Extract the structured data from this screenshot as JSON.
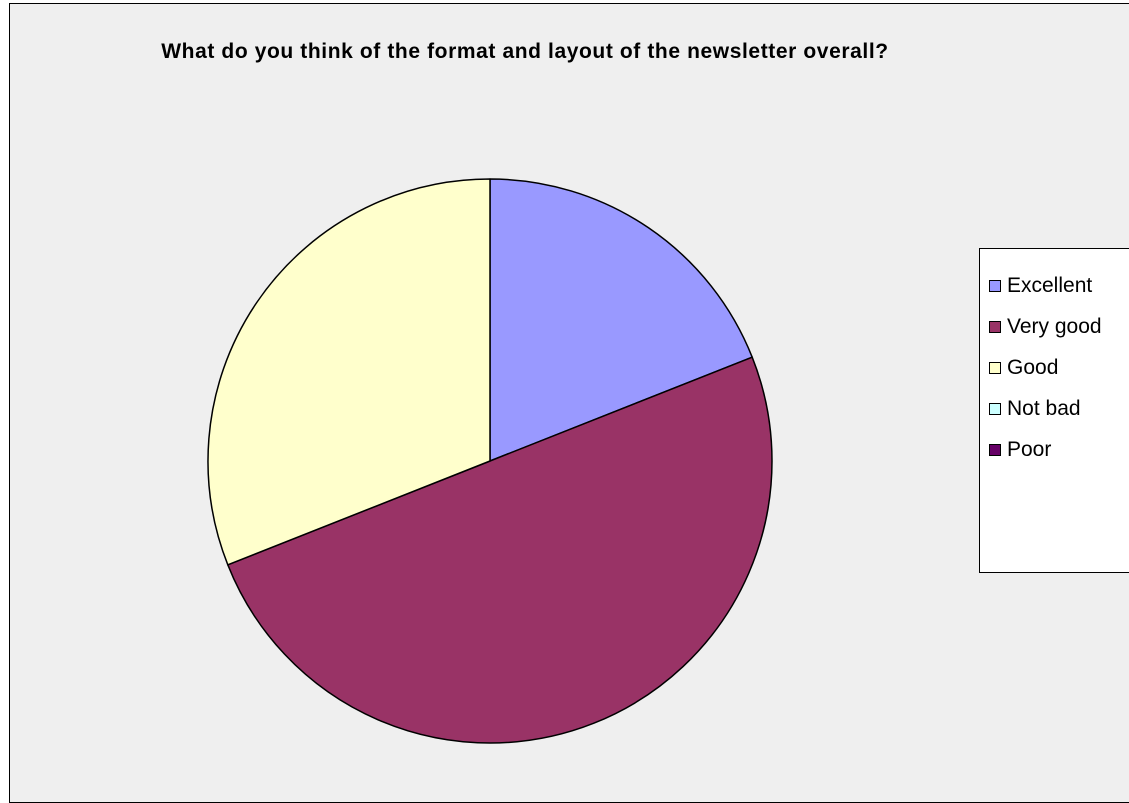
{
  "chart_data": {
    "type": "pie",
    "title": "What do you think of the format and layout of the newsletter overall?",
    "categories": [
      "Excellent",
      "Very good",
      "Good",
      "Not bad",
      "Poor"
    ],
    "values": [
      19,
      50,
      31,
      0,
      0
    ],
    "value_unit": "percent (estimated)",
    "colors": [
      "#9999ff",
      "#993366",
      "#ffffcc",
      "#ccffff",
      "#660066"
    ],
    "legend_position": "right"
  },
  "legend": {
    "items": [
      {
        "label": "Excellent",
        "color": "#9999ff"
      },
      {
        "label": "Very good",
        "color": "#993366"
      },
      {
        "label": "Good",
        "color": "#ffffcc"
      },
      {
        "label": "Not bad",
        "color": "#ccffff"
      },
      {
        "label": "Poor",
        "color": "#660066"
      }
    ]
  }
}
